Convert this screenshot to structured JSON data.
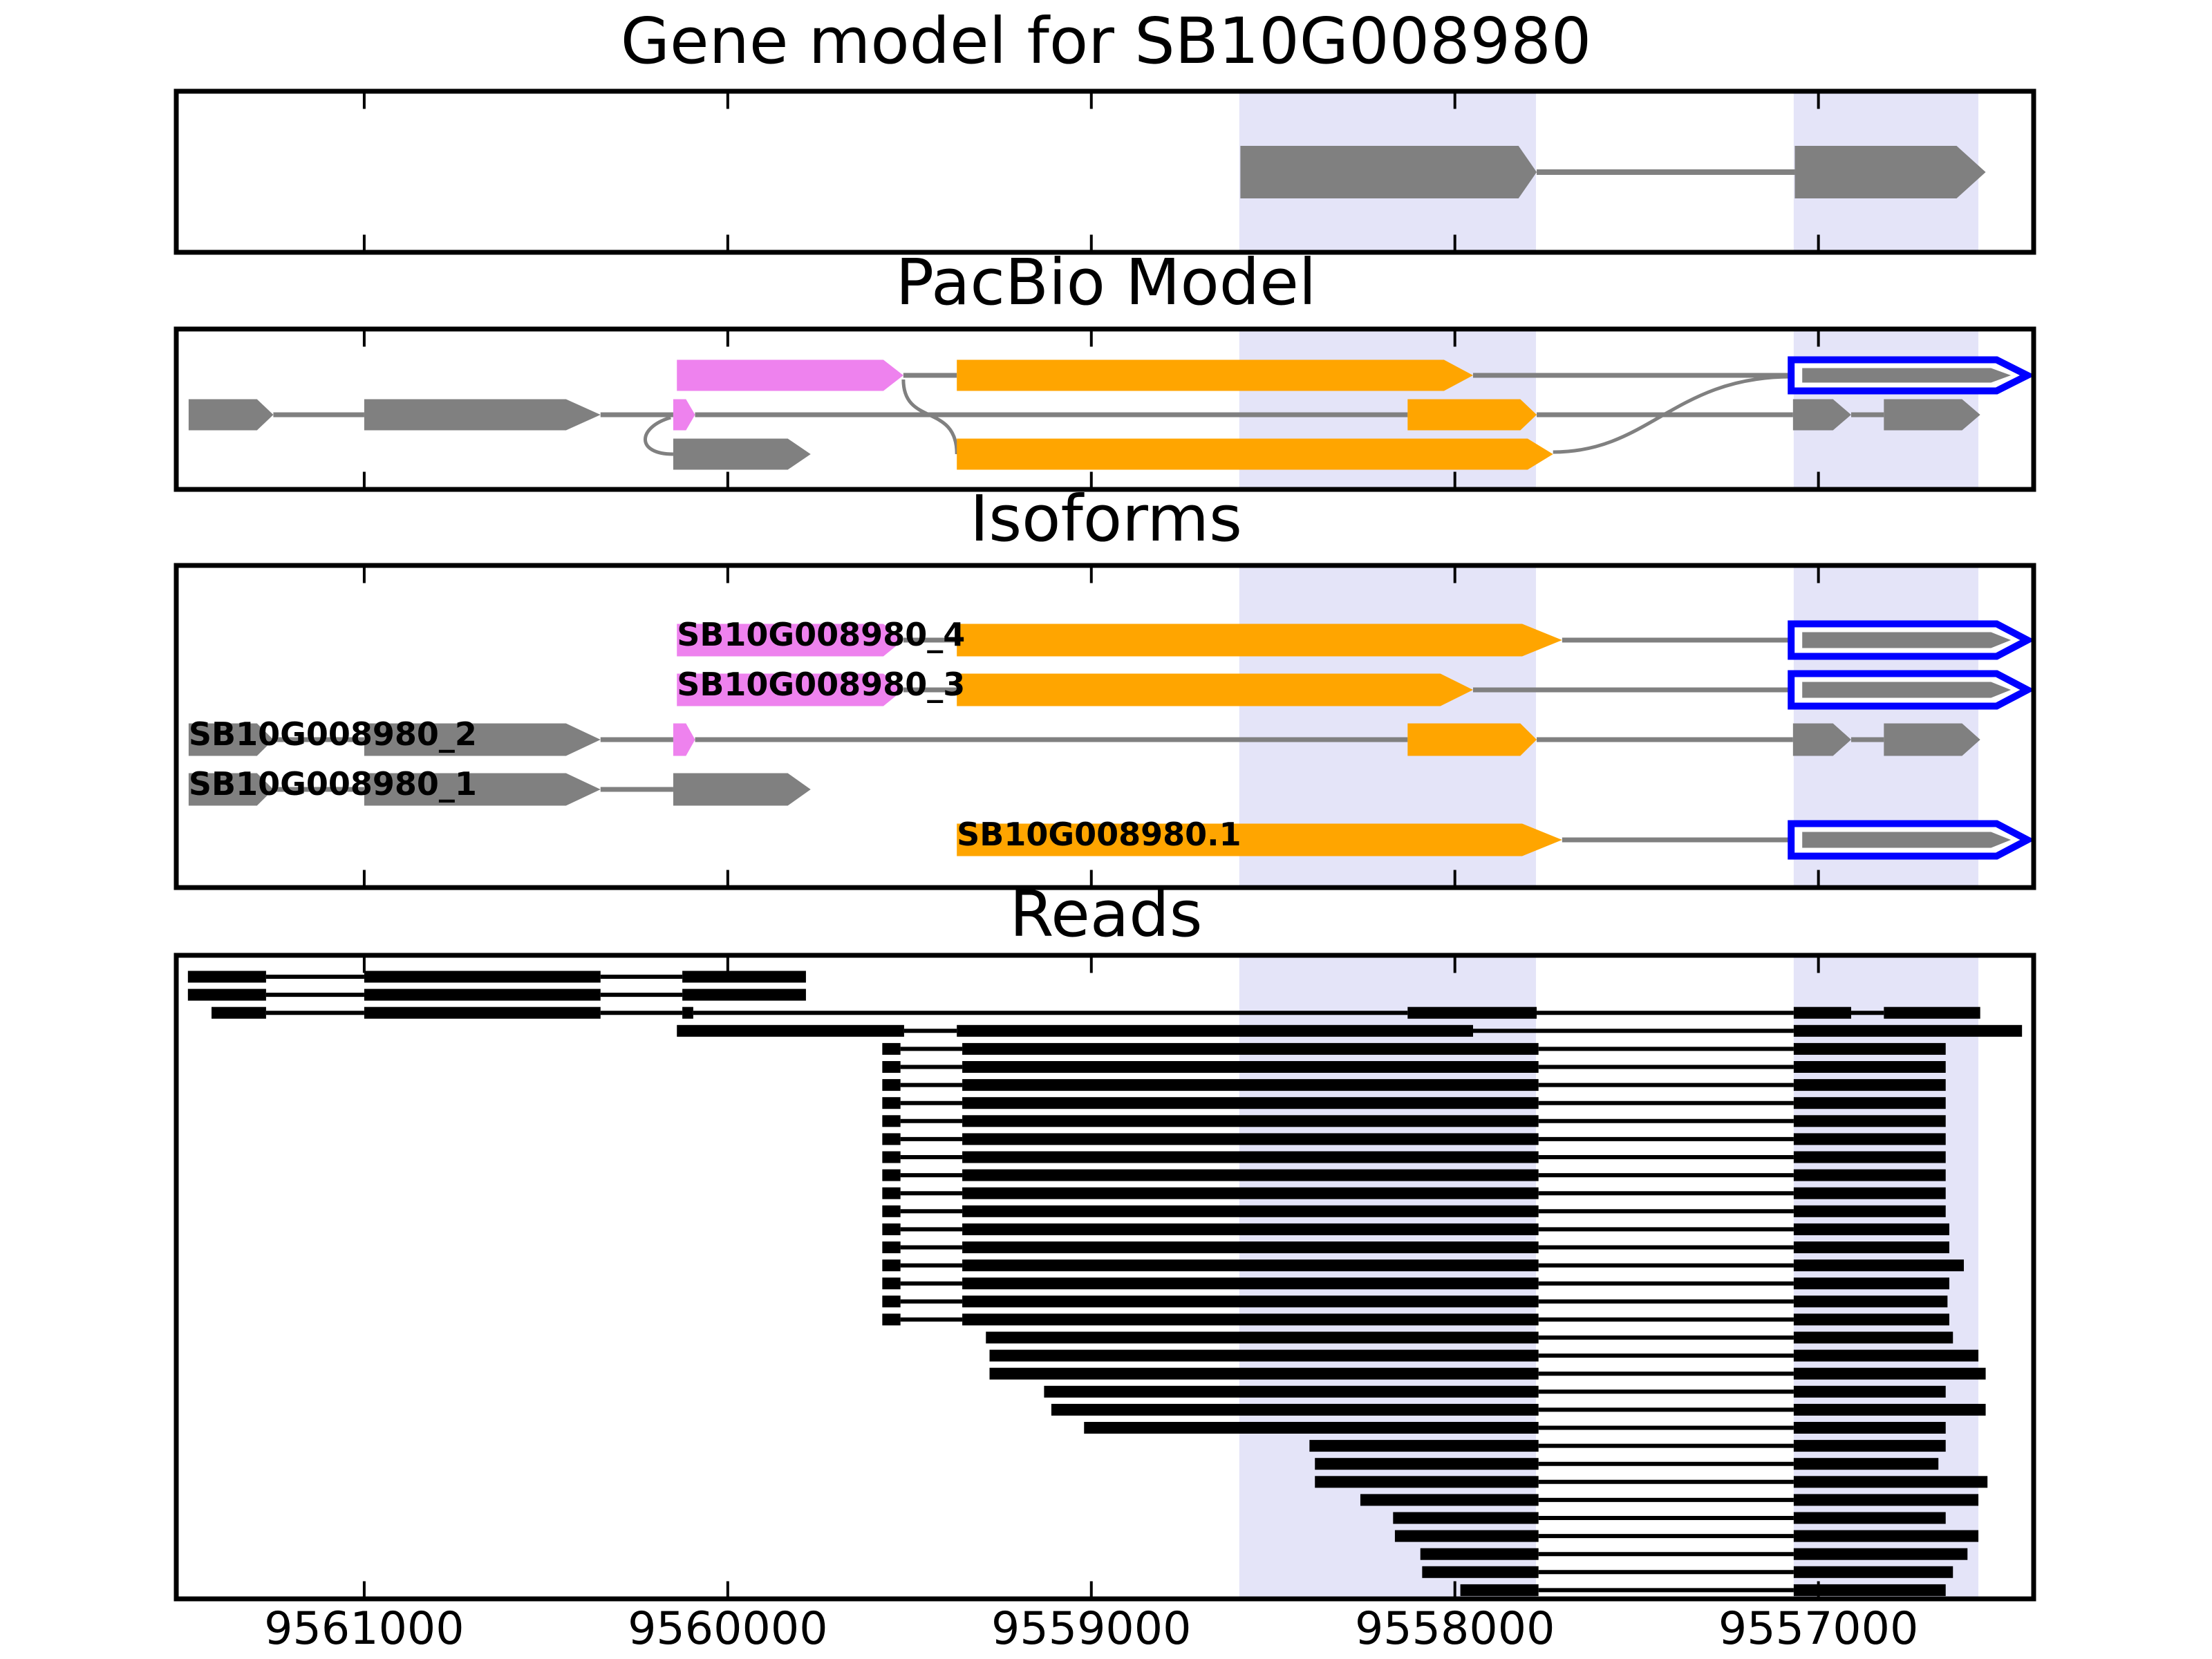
{
  "titles": {
    "main": "Gene model for SB10G008980",
    "pacbio": "PacBio Model",
    "isoforms": "Isoforms",
    "reads": "Reads"
  },
  "colors": {
    "gray": "#808080",
    "orange": "#FFA500",
    "violet": "#EE82EE",
    "blue": "#0000FF",
    "read_black": "#000000",
    "band": "#E4E4F8",
    "intron_line": "#808080",
    "border": "#000000"
  },
  "chart_data": {
    "type": "gene-model-track-plot",
    "title": "Gene model for SB10G008980",
    "xlabel": "",
    "x_axis": {
      "reversed": true,
      "view_left_bp": 9561517,
      "view_right_bp": 9556408,
      "ticks": [
        {
          "bp": 9561000,
          "label": "9561000"
        },
        {
          "bp": 9560000,
          "label": "9560000"
        },
        {
          "bp": 9559000,
          "label": "9559000"
        },
        {
          "bp": 9558000,
          "label": "9558000"
        },
        {
          "bp": 9557000,
          "label": "9557000"
        }
      ]
    },
    "highlight_bands": [
      {
        "s": 9558593,
        "e": 9557777
      },
      {
        "s": 9557068,
        "e": 9556560
      }
    ],
    "gene_model": {
      "rows": [
        {
          "features": [
            {
              "kind": "exon",
              "color": "gray",
              "s": 9558590,
              "e": 9557825,
              "tip": 9557775
            },
            {
              "kind": "intron",
              "s": 9557775,
              "e": 9557065
            },
            {
              "kind": "exon",
              "color": "gray",
              "s": 9557065,
              "e": 9556620,
              "tip": 9556540
            }
          ]
        }
      ]
    },
    "pacbio": {
      "rows": [
        {
          "features": [
            {
              "kind": "exon",
              "color": "violet",
              "s": 9560140,
              "e": 9559572,
              "tip": 9559517
            },
            {
              "kind": "intron",
              "s": 9559517,
              "e": 9559370
            },
            {
              "kind": "exon",
              "color": "orange",
              "s": 9559370,
              "e": 9558030,
              "tip": 9557950
            },
            {
              "kind": "intron",
              "s": 9557950,
              "e": 9557075
            },
            {
              "kind": "bluearrow",
              "s": 9557075,
              "e": 9556510,
              "tip": 9556425
            }
          ]
        },
        {
          "features": [
            {
              "kind": "exon",
              "color": "gray",
              "s": 9561483,
              "e": 9561295,
              "tip": 9561250
            },
            {
              "kind": "intron",
              "s": 9561250,
              "e": 9561000
            },
            {
              "kind": "exon",
              "color": "gray",
              "s": 9561000,
              "e": 9560445,
              "tip": 9560350
            },
            {
              "kind": "intron",
              "s": 9560350,
              "e": 9560150
            },
            {
              "kind": "exon",
              "color": "violet",
              "s": 9560150,
              "e": 9560115,
              "tip": 9560090
            },
            {
              "kind": "intron",
              "s": 9560090,
              "e": 9558130
            },
            {
              "kind": "exon",
              "color": "orange",
              "s": 9558130,
              "e": 9557820,
              "tip": 9557775
            },
            {
              "kind": "intron",
              "s": 9557775,
              "e": 9557070
            },
            {
              "kind": "exon",
              "color": "gray",
              "s": 9557070,
              "e": 9556960,
              "tip": 9556910
            },
            {
              "kind": "intron",
              "s": 9556910,
              "e": 9556820
            },
            {
              "kind": "exon",
              "color": "gray",
              "s": 9556820,
              "e": 9556605,
              "tip": 9556555
            }
          ]
        },
        {
          "features": [
            {
              "kind": "exon",
              "color": "gray",
              "s": 9560150,
              "e": 9559835,
              "tip": 9559772
            },
            {
              "kind": "exon",
              "color": "orange",
              "s": 9559370,
              "e": 9557800,
              "tip": 9557730
            }
          ]
        }
      ],
      "curves": [
        {
          "shape": "drop",
          "from": {
            "bp": 9559517,
            "row": 0
          },
          "to": {
            "bp": 9559370,
            "row": 2
          }
        },
        {
          "shape": "hook",
          "from": {
            "bp": 9560100,
            "row": 1
          },
          "to": {
            "bp": 9560150,
            "row": 2
          }
        },
        {
          "shape": "rise",
          "from": {
            "bp": 9557730,
            "row": 2
          },
          "to": {
            "bp": 9557075,
            "row": 0
          }
        }
      ]
    },
    "isoforms": {
      "rows": [
        {
          "label": "SB10G008980_4",
          "label_bp": 9560140,
          "features": [
            {
              "kind": "exon",
              "color": "violet",
              "s": 9560140,
              "e": 9559572,
              "tip": 9559517
            },
            {
              "kind": "intron",
              "s": 9559517,
              "e": 9559370
            },
            {
              "kind": "exon",
              "color": "orange",
              "s": 9559370,
              "e": 9557815,
              "tip": 9557705
            },
            {
              "kind": "intron",
              "s": 9557705,
              "e": 9557075
            },
            {
              "kind": "bluearrow",
              "s": 9557075,
              "e": 9556510,
              "tip": 9556425
            }
          ]
        },
        {
          "label": "SB10G008980_3",
          "label_bp": 9560140,
          "features": [
            {
              "kind": "exon",
              "color": "violet",
              "s": 9560140,
              "e": 9559572,
              "tip": 9559517
            },
            {
              "kind": "intron",
              "s": 9559517,
              "e": 9559370
            },
            {
              "kind": "exon",
              "color": "orange",
              "s": 9559370,
              "e": 9558040,
              "tip": 9557950
            },
            {
              "kind": "intron",
              "s": 9557950,
              "e": 9557075
            },
            {
              "kind": "bluearrow",
              "s": 9557075,
              "e": 9556510,
              "tip": 9556425
            }
          ]
        },
        {
          "label": "SB10G008980_2",
          "label_bp": 9561483,
          "features": [
            {
              "kind": "exon",
              "color": "gray",
              "s": 9561483,
              "e": 9561295,
              "tip": 9561250
            },
            {
              "kind": "intron",
              "s": 9561250,
              "e": 9561000
            },
            {
              "kind": "exon",
              "color": "gray",
              "s": 9561000,
              "e": 9560445,
              "tip": 9560350
            },
            {
              "kind": "intron",
              "s": 9560350,
              "e": 9560150
            },
            {
              "kind": "exon",
              "color": "violet",
              "s": 9560150,
              "e": 9560115,
              "tip": 9560090
            },
            {
              "kind": "intron",
              "s": 9560090,
              "e": 9558130
            },
            {
              "kind": "exon",
              "color": "orange",
              "s": 9558130,
              "e": 9557820,
              "tip": 9557775
            },
            {
              "kind": "intron",
              "s": 9557775,
              "e": 9557070
            },
            {
              "kind": "exon",
              "color": "gray",
              "s": 9557070,
              "e": 9556960,
              "tip": 9556910
            },
            {
              "kind": "intron",
              "s": 9556910,
              "e": 9556820
            },
            {
              "kind": "exon",
              "color": "gray",
              "s": 9556820,
              "e": 9556605,
              "tip": 9556555
            }
          ]
        },
        {
          "label": "SB10G008980_1",
          "label_bp": 9561483,
          "features": [
            {
              "kind": "exon",
              "color": "gray",
              "s": 9561483,
              "e": 9561295,
              "tip": 9561250
            },
            {
              "kind": "intron",
              "s": 9561250,
              "e": 9561000
            },
            {
              "kind": "exon",
              "color": "gray",
              "s": 9561000,
              "e": 9560445,
              "tip": 9560350
            },
            {
              "kind": "intron",
              "s": 9560350,
              "e": 9560150
            },
            {
              "kind": "exon",
              "color": "gray",
              "s": 9560150,
              "e": 9559835,
              "tip": 9559772
            }
          ]
        },
        {
          "label": "SB10G008980.1",
          "label_bp": 9559370,
          "features": [
            {
              "kind": "exon",
              "color": "orange",
              "s": 9559370,
              "e": 9557815,
              "tip": 9557705
            },
            {
              "kind": "intron",
              "s": 9557705,
              "e": 9557075
            },
            {
              "kind": "bluearrow",
              "s": 9557075,
              "e": 9556510,
              "tip": 9556425
            }
          ]
        }
      ]
    },
    "reads": [
      {
        "exons": [
          [
            9561485,
            9561270
          ],
          [
            9561000,
            9560350
          ],
          [
            9560125,
            9559785
          ]
        ]
      },
      {
        "exons": [
          [
            9561485,
            9561270
          ],
          [
            9561000,
            9560350
          ],
          [
            9560125,
            9559785
          ]
        ]
      },
      {
        "exons": [
          [
            9561420,
            9561270
          ],
          [
            9561000,
            9560350
          ],
          [
            9560125,
            9560095
          ],
          [
            9558130,
            9557775
          ],
          [
            9557068,
            9556910
          ],
          [
            9556820,
            9556555
          ]
        ]
      },
      {
        "exons": [
          [
            9560140,
            9559515
          ],
          [
            9559370,
            9557950
          ],
          [
            9557068,
            9556440
          ]
        ]
      },
      {
        "exons": [
          [
            9559575,
            9559525
          ],
          [
            9559355,
            9557770
          ],
          [
            9557068,
            9556650
          ]
        ]
      },
      {
        "exons": [
          [
            9559575,
            9559525
          ],
          [
            9559355,
            9557770
          ],
          [
            9557068,
            9556650
          ]
        ]
      },
      {
        "exons": [
          [
            9559575,
            9559525
          ],
          [
            9559355,
            9557770
          ],
          [
            9557068,
            9556650
          ]
        ]
      },
      {
        "exons": [
          [
            9559575,
            9559525
          ],
          [
            9559355,
            9557770
          ],
          [
            9557068,
            9556650
          ]
        ]
      },
      {
        "exons": [
          [
            9559575,
            9559525
          ],
          [
            9559355,
            9557770
          ],
          [
            9557068,
            9556650
          ]
        ]
      },
      {
        "exons": [
          [
            9559575,
            9559525
          ],
          [
            9559355,
            9557770
          ],
          [
            9557068,
            9556650
          ]
        ]
      },
      {
        "exons": [
          [
            9559575,
            9559525
          ],
          [
            9559355,
            9557770
          ],
          [
            9557068,
            9556650
          ]
        ]
      },
      {
        "exons": [
          [
            9559575,
            9559525
          ],
          [
            9559355,
            9557770
          ],
          [
            9557068,
            9556650
          ]
        ]
      },
      {
        "exons": [
          [
            9559575,
            9559525
          ],
          [
            9559355,
            9557770
          ],
          [
            9557068,
            9556650
          ]
        ]
      },
      {
        "exons": [
          [
            9559575,
            9559525
          ],
          [
            9559355,
            9557770
          ],
          [
            9557068,
            9556650
          ]
        ]
      },
      {
        "exons": [
          [
            9559575,
            9559525
          ],
          [
            9559355,
            9557770
          ],
          [
            9557068,
            9556640
          ]
        ]
      },
      {
        "exons": [
          [
            9559575,
            9559525
          ],
          [
            9559355,
            9557770
          ],
          [
            9557068,
            9556640
          ]
        ]
      },
      {
        "exons": [
          [
            9559575,
            9559525
          ],
          [
            9559355,
            9557770
          ],
          [
            9557068,
            9556600
          ]
        ]
      },
      {
        "exons": [
          [
            9559575,
            9559525
          ],
          [
            9559355,
            9557770
          ],
          [
            9557068,
            9556640
          ]
        ]
      },
      {
        "exons": [
          [
            9559575,
            9559525
          ],
          [
            9559355,
            9557770
          ],
          [
            9557068,
            9556645
          ]
        ]
      },
      {
        "exons": [
          [
            9559575,
            9559525
          ],
          [
            9559355,
            9557770
          ],
          [
            9557068,
            9556640
          ]
        ]
      },
      {
        "exons": [
          [
            9559290,
            9557770
          ],
          [
            9557068,
            9556630
          ]
        ]
      },
      {
        "exons": [
          [
            9559280,
            9557770
          ],
          [
            9557068,
            9556560
          ]
        ]
      },
      {
        "exons": [
          [
            9559280,
            9557770
          ],
          [
            9557068,
            9556540
          ]
        ]
      },
      {
        "exons": [
          [
            9559130,
            9557770
          ],
          [
            9557068,
            9556650
          ]
        ]
      },
      {
        "exons": [
          [
            9559110,
            9557770
          ],
          [
            9557068,
            9556540
          ]
        ]
      },
      {
        "exons": [
          [
            9559020,
            9557770
          ],
          [
            9557068,
            9556650
          ]
        ]
      },
      {
        "exons": [
          [
            9558400,
            9557770
          ],
          [
            9557068,
            9556650
          ]
        ]
      },
      {
        "exons": [
          [
            9558385,
            9557770
          ],
          [
            9557068,
            9556670
          ]
        ]
      },
      {
        "exons": [
          [
            9558385,
            9557770
          ],
          [
            9557068,
            9556535
          ]
        ]
      },
      {
        "exons": [
          [
            9558260,
            9557770
          ],
          [
            9557068,
            9556560
          ]
        ]
      },
      {
        "exons": [
          [
            9558170,
            9557770
          ],
          [
            9557068,
            9556650
          ]
        ]
      },
      {
        "exons": [
          [
            9558165,
            9557770
          ],
          [
            9557068,
            9556560
          ]
        ]
      },
      {
        "exons": [
          [
            9558095,
            9557770
          ],
          [
            9557068,
            9556590
          ]
        ]
      },
      {
        "exons": [
          [
            9558090,
            9557770
          ],
          [
            9557068,
            9556630
          ]
        ]
      },
      {
        "exons": [
          [
            9557985,
            9557770
          ],
          [
            9557068,
            9556650
          ]
        ]
      }
    ]
  }
}
